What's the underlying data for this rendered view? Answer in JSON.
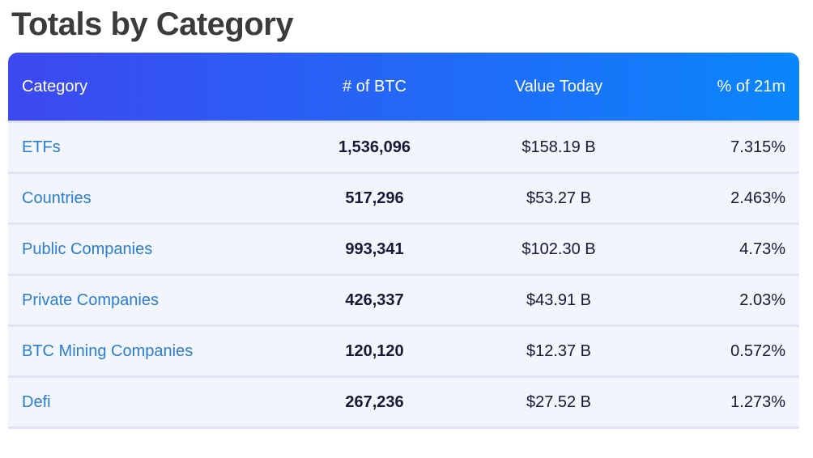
{
  "page": {
    "title": "Totals by Category"
  },
  "table": {
    "columns": [
      {
        "label": "Category"
      },
      {
        "label": "# of BTC"
      },
      {
        "label": "Value Today"
      },
      {
        "label": "% of 21m"
      }
    ],
    "rows": [
      {
        "category": "ETFs",
        "btc": "1,536,096",
        "value": "$158.19 B",
        "pct": "7.315%"
      },
      {
        "category": "Countries",
        "btc": "517,296",
        "value": "$53.27 B",
        "pct": "2.463%"
      },
      {
        "category": "Public Companies",
        "btc": "993,341",
        "value": "$102.30 B",
        "pct": "4.73%"
      },
      {
        "category": "Private Companies",
        "btc": "426,337",
        "value": "$43.91 B",
        "pct": "2.03%"
      },
      {
        "category": "BTC Mining Companies",
        "btc": "120,120",
        "value": "$12.37 B",
        "pct": "0.572%"
      },
      {
        "category": "Defi",
        "btc": "267,236",
        "value": "$27.52 B",
        "pct": "1.273%"
      }
    ],
    "colors": {
      "header_gradient_start": "#3d48f0",
      "header_gradient_end": "#0a86fc",
      "row_background": "#f3f5fc",
      "row_border": "#dfe4f5",
      "category_link": "#2b7dce",
      "value_text": "#141b33",
      "title_text": "#3b3b3b"
    }
  }
}
